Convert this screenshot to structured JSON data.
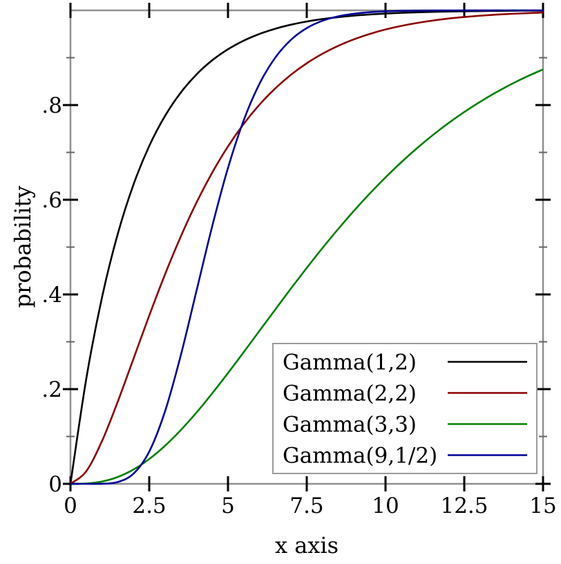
{
  "figure": {
    "background": "#ffffff",
    "frame_color": "#8f8f8f",
    "major_tick_color": "#000000",
    "minor_tick_color": "#666666",
    "text_color": "#000000",
    "legend_border_color": "#9a9a9a",
    "legend_background": "#ffffff",
    "curve_width": 2.6
  },
  "chart_data": {
    "type": "line",
    "title": "",
    "xlabel": "x axis",
    "ylabel": "probability",
    "xlim": [
      0,
      15
    ],
    "ylim": [
      0,
      1
    ],
    "grid": false,
    "legend_position": "inside-bottom-right",
    "x_ticks": [
      {
        "value": 0,
        "label": "0"
      },
      {
        "value": 2.5,
        "label": "2.5"
      },
      {
        "value": 5,
        "label": "5"
      },
      {
        "value": 7.5,
        "label": "7.5"
      },
      {
        "value": 10,
        "label": "10"
      },
      {
        "value": 12.5,
        "label": "12.5"
      },
      {
        "value": 15,
        "label": "15"
      }
    ],
    "y_ticks": [
      {
        "value": 0.0,
        "label": "0",
        "major": true
      },
      {
        "value": 0.1,
        "label": "",
        "major": false
      },
      {
        "value": 0.2,
        "label": ".2",
        "major": true
      },
      {
        "value": 0.3,
        "label": "",
        "major": false
      },
      {
        "value": 0.4,
        "label": ".4",
        "major": true
      },
      {
        "value": 0.5,
        "label": "",
        "major": false
      },
      {
        "value": 0.6,
        "label": ".6",
        "major": true
      },
      {
        "value": 0.7,
        "label": "",
        "major": false
      },
      {
        "value": 0.8,
        "label": ".8",
        "major": true
      },
      {
        "value": 0.9,
        "label": "",
        "major": false
      }
    ],
    "x": [
      0,
      0.5,
      1,
      1.5,
      2,
      2.5,
      3,
      3.5,
      4,
      4.5,
      5,
      5.5,
      6,
      6.5,
      7,
      7.5,
      8,
      8.5,
      9,
      9.5,
      10,
      10.5,
      11,
      11.5,
      12,
      12.5,
      13,
      13.5,
      14,
      14.5,
      15
    ],
    "series": [
      {
        "name": "Gamma(1,2)",
        "shape": 1,
        "scale": 2,
        "color": "#000000",
        "values": [
          0,
          0.2212,
          0.3935,
          0.5276,
          0.6321,
          0.7135,
          0.7769,
          0.8262,
          0.8647,
          0.8946,
          0.9179,
          0.9361,
          0.9502,
          0.9612,
          0.9698,
          0.9765,
          0.9817,
          0.9857,
          0.9889,
          0.9913,
          0.9933,
          0.9948,
          0.9959,
          0.9968,
          0.9975,
          0.9981,
          0.9985,
          0.9988,
          0.9991,
          0.9993,
          0.9994
        ]
      },
      {
        "name": "Gamma(2,2)",
        "shape": 2,
        "scale": 2,
        "color": "#8b0000",
        "values": [
          0,
          0.0265,
          0.0902,
          0.1734,
          0.2642,
          0.3554,
          0.4422,
          0.5221,
          0.594,
          0.6574,
          0.7127,
          0.7603,
          0.8009,
          0.8352,
          0.8641,
          0.8883,
          0.9084,
          0.9251,
          0.9389,
          0.9502,
          0.9596,
          0.9672,
          0.9734,
          0.9785,
          0.9827,
          0.986,
          0.9887,
          0.9909,
          0.9927,
          0.9941,
          0.9953
        ]
      },
      {
        "name": "Gamma(3,3)",
        "shape": 3,
        "scale": 3,
        "color": "#008000",
        "values": [
          0,
          0.0006,
          0.0048,
          0.0144,
          0.0302,
          0.0524,
          0.0803,
          0.1134,
          0.1506,
          0.1912,
          0.234,
          0.2782,
          0.3233,
          0.3681,
          0.4128,
          0.4561,
          0.4981,
          0.5384,
          0.5768,
          0.6131,
          0.6472,
          0.6792,
          0.7089,
          0.7365,
          0.7619,
          0.7853,
          0.8068,
          0.8264,
          0.8443,
          0.8606,
          0.8753
        ]
      },
      {
        "name": "Gamma(9,1/2)",
        "shape": 9,
        "scale": 0.5,
        "color": "#000099",
        "values": [
          0,
          0,
          0.0001,
          0.0038,
          0.0214,
          0.0681,
          0.1528,
          0.2709,
          0.4075,
          0.5443,
          0.6672,
          0.768,
          0.845,
          0.9002,
          0.9379,
          0.9626,
          0.978,
          0.9874,
          0.9929,
          0.9961,
          0.9979,
          0.9989,
          0.9994,
          0.9997,
          0.9998,
          0.9999,
          1,
          1,
          1,
          1,
          1
        ]
      }
    ]
  }
}
